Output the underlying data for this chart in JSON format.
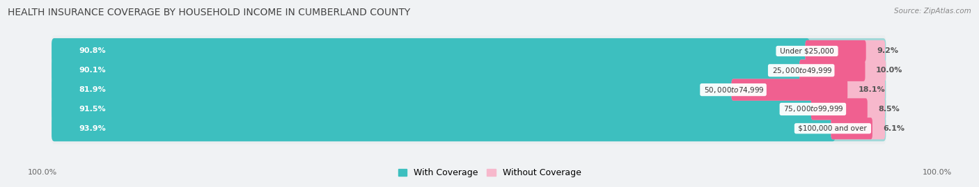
{
  "title": "HEALTH INSURANCE COVERAGE BY HOUSEHOLD INCOME IN CUMBERLAND COUNTY",
  "source": "Source: ZipAtlas.com",
  "categories": [
    "Under $25,000",
    "$25,000 to $49,999",
    "$50,000 to $74,999",
    "$75,000 to $99,999",
    "$100,000 and over"
  ],
  "with_coverage": [
    90.8,
    90.1,
    81.9,
    91.5,
    93.9
  ],
  "without_coverage": [
    9.2,
    10.0,
    18.1,
    8.5,
    6.1
  ],
  "color_coverage": "#3dbfbf",
  "color_without": "#f06090",
  "color_without_light": "#f7b8cc",
  "color_coverage_light": "#a0d8d8",
  "row_bg_odd": "#eceef0",
  "row_bg_even": "#e2e6e8",
  "title_fontsize": 10,
  "label_fontsize": 8,
  "legend_fontsize": 9,
  "axis_label": "100.0%",
  "bar_height": 0.7,
  "total_width": 100.0,
  "fig_bg": "#f0f2f4"
}
